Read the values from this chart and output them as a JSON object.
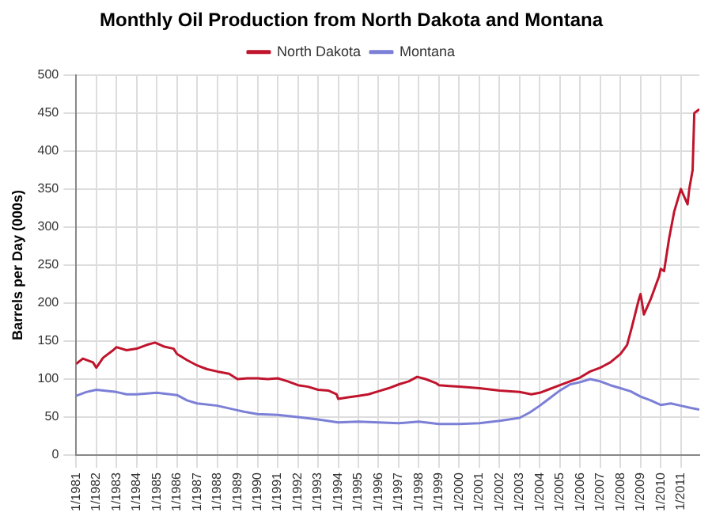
{
  "chart_data": {
    "type": "line",
    "title": "Monthly Oil Production from North Dakota and Montana",
    "ylabel": "Barrels per Day (000s)",
    "xlim": [
      "1981-01",
      "2011-12"
    ],
    "ylim": [
      0,
      500
    ],
    "yticks": [
      0,
      50,
      100,
      150,
      200,
      250,
      300,
      350,
      400,
      450,
      500
    ],
    "xticks": [
      {
        "value": "1981-01",
        "label": "1/1981"
      },
      {
        "value": "1982-01",
        "label": "1/1982"
      },
      {
        "value": "1983-01",
        "label": "1/1983"
      },
      {
        "value": "1984-01",
        "label": "1/1984"
      },
      {
        "value": "1985-01",
        "label": "1/1985"
      },
      {
        "value": "1986-01",
        "label": "1/1986"
      },
      {
        "value": "1987-01",
        "label": "1/1987"
      },
      {
        "value": "1988-01",
        "label": "1/1988"
      },
      {
        "value": "1989-01",
        "label": "1/1989"
      },
      {
        "value": "1990-01",
        "label": "1/1990"
      },
      {
        "value": "1991-01",
        "label": "1/1991"
      },
      {
        "value": "1992-01",
        "label": "1/1992"
      },
      {
        "value": "1993-01",
        "label": "1/1993"
      },
      {
        "value": "1994-01",
        "label": "1/1994"
      },
      {
        "value": "1995-01",
        "label": "1/1995"
      },
      {
        "value": "1996-01",
        "label": "1/1996"
      },
      {
        "value": "1997-01",
        "label": "1/1997"
      },
      {
        "value": "1998-01",
        "label": "1/1998"
      },
      {
        "value": "1999-01",
        "label": "1/1999"
      },
      {
        "value": "2000-01",
        "label": "1/2000"
      },
      {
        "value": "2001-01",
        "label": "1/2001"
      },
      {
        "value": "2002-01",
        "label": "1/2002"
      },
      {
        "value": "2003-01",
        "label": "1/2003"
      },
      {
        "value": "2004-01",
        "label": "1/2004"
      },
      {
        "value": "2005-01",
        "label": "1/2005"
      },
      {
        "value": "2006-01",
        "label": "1/2006"
      },
      {
        "value": "2007-01",
        "label": "1/2007"
      },
      {
        "value": "2008-01",
        "label": "1/2008"
      },
      {
        "value": "2009-01",
        "label": "1/2009"
      },
      {
        "value": "2010-01",
        "label": "1/2010"
      },
      {
        "value": "2011-01",
        "label": "1/2011"
      }
    ],
    "grid": true,
    "legend": "top",
    "marker": "none",
    "line_style": "solid",
    "series": [
      {
        "name": "North Dakota",
        "color": "#c0142d",
        "x": [
          "1981-01",
          "1981-05",
          "1981-11",
          "1982-01",
          "1982-05",
          "1982-11",
          "1983-01",
          "1983-07",
          "1984-01",
          "1984-07",
          "1984-12",
          "1985-05",
          "1985-11",
          "1986-01",
          "1986-07",
          "1987-01",
          "1987-07",
          "1988-01",
          "1988-08",
          "1989-01",
          "1989-07",
          "1990-01",
          "1990-07",
          "1991-01",
          "1991-07",
          "1992-01",
          "1992-07",
          "1993-01",
          "1993-07",
          "1993-12",
          "1994-01",
          "1994-07",
          "1995-01",
          "1995-07",
          "1996-01",
          "1996-07",
          "1997-01",
          "1997-07",
          "1997-12",
          "1998-05",
          "1998-11",
          "1999-01",
          "1999-07",
          "2000-01",
          "2001-01",
          "2002-01",
          "2003-01",
          "2003-08",
          "2004-01",
          "2004-07",
          "2005-01",
          "2005-07",
          "2006-01",
          "2006-07",
          "2007-01",
          "2007-07",
          "2008-01",
          "2008-05",
          "2008-08",
          "2008-12",
          "2009-01",
          "2009-03",
          "2009-07",
          "2009-12",
          "2010-01",
          "2010-03",
          "2010-06",
          "2010-09",
          "2011-01",
          "2011-03",
          "2011-05",
          "2011-06",
          "2011-08",
          "2011-09",
          "2011-12"
        ],
        "values": [
          120,
          127,
          122,
          115,
          128,
          138,
          142,
          138,
          140,
          145,
          148,
          143,
          140,
          133,
          125,
          118,
          113,
          110,
          107,
          100,
          101,
          101,
          100,
          101,
          97,
          92,
          90,
          86,
          85,
          80,
          74,
          76,
          78,
          80,
          84,
          88,
          93,
          97,
          103,
          100,
          95,
          92,
          91,
          90,
          88,
          85,
          83,
          80,
          82,
          87,
          92,
          97,
          102,
          110,
          115,
          122,
          133,
          145,
          170,
          205,
          212,
          185,
          205,
          235,
          245,
          242,
          285,
          320,
          350,
          340,
          330,
          350,
          375,
          450,
          455
        ]
      },
      {
        "name": "Montana",
        "color": "#7b7fd6",
        "x": [
          "1981-01",
          "1981-07",
          "1982-01",
          "1983-01",
          "1983-07",
          "1984-01",
          "1985-01",
          "1986-01",
          "1986-07",
          "1987-01",
          "1988-01",
          "1989-01",
          "1989-05",
          "1990-01",
          "1991-01",
          "1992-01",
          "1993-01",
          "1994-01",
          "1995-01",
          "1996-01",
          "1997-01",
          "1998-01",
          "1999-01",
          "2000-01",
          "2001-01",
          "2002-01",
          "2003-01",
          "2003-07",
          "2004-01",
          "2004-07",
          "2005-01",
          "2005-07",
          "2006-01",
          "2006-07",
          "2007-01",
          "2007-07",
          "2008-01",
          "2008-07",
          "2009-01",
          "2009-07",
          "2010-01",
          "2010-07",
          "2011-01",
          "2011-07",
          "2011-12"
        ],
        "values": [
          78,
          83,
          86,
          83,
          80,
          80,
          82,
          79,
          72,
          68,
          65,
          59,
          57,
          54,
          53,
          50,
          47,
          43,
          44,
          43,
          42,
          44,
          41,
          41,
          42,
          45,
          49,
          56,
          65,
          75,
          85,
          93,
          96,
          100,
          97,
          92,
          88,
          84,
          77,
          72,
          66,
          68,
          65,
          62,
          60
        ]
      }
    ]
  }
}
